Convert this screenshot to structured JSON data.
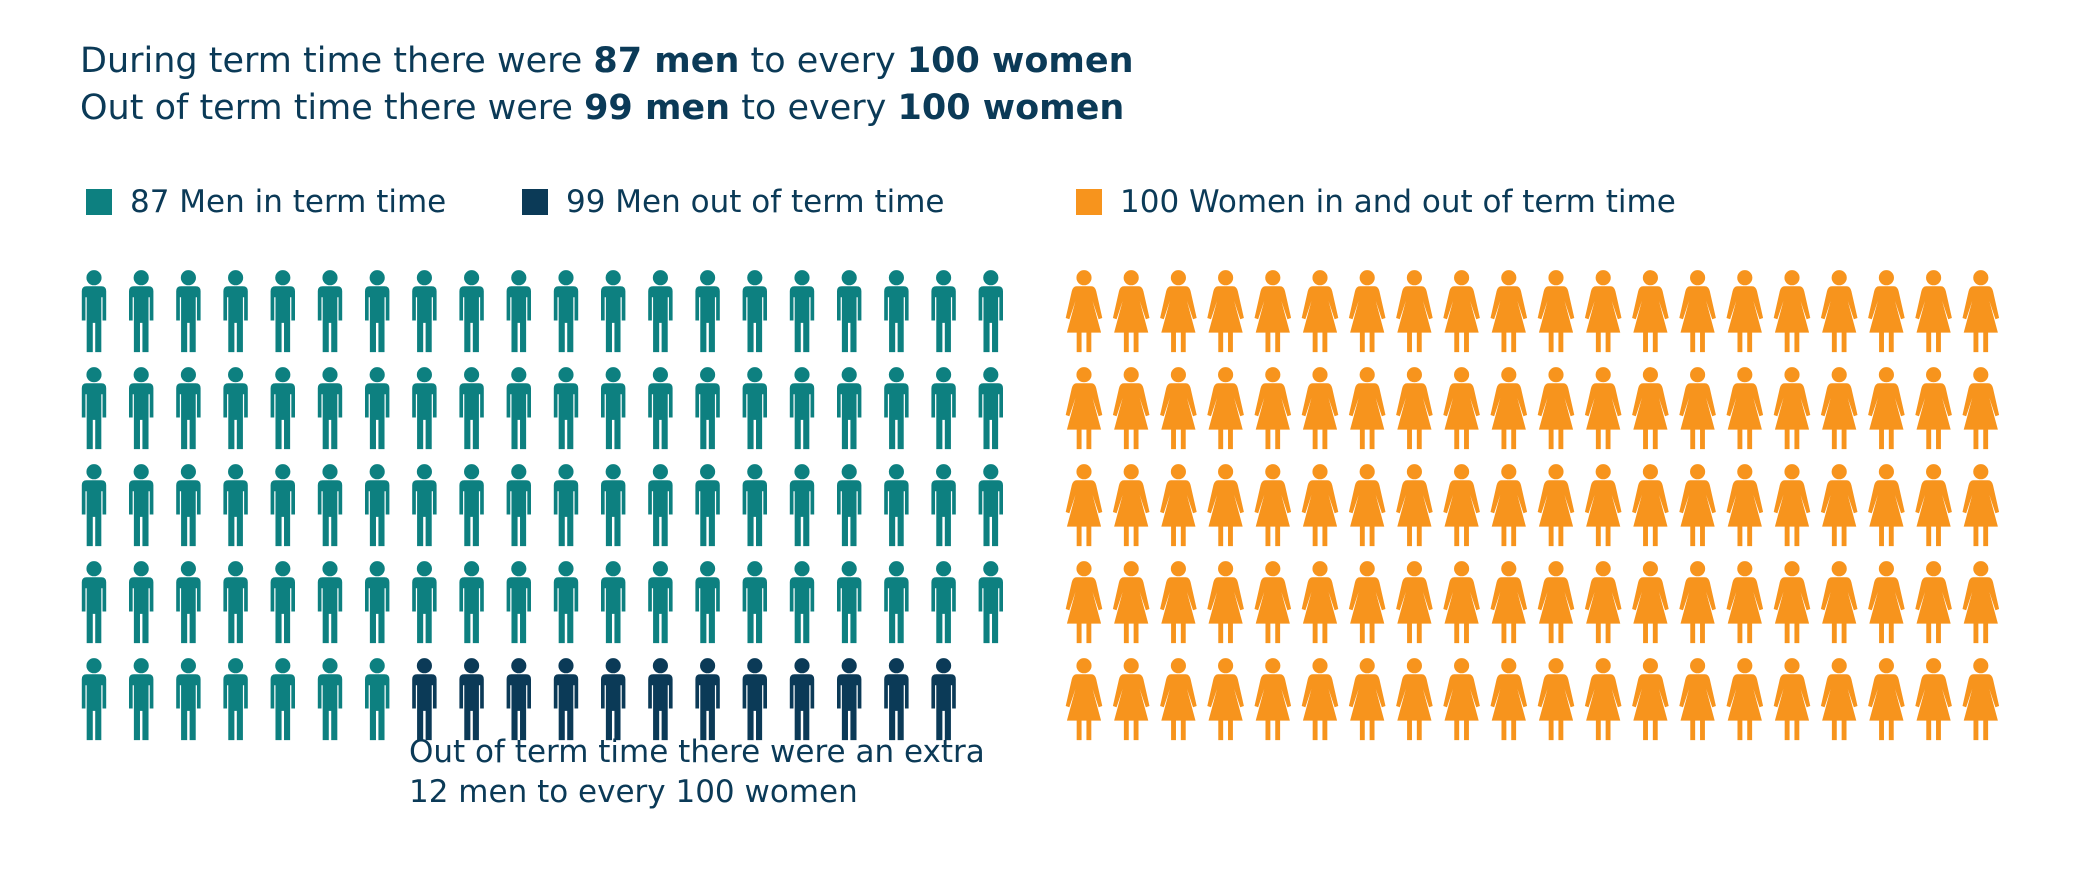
{
  "headline": {
    "line1": {
      "pre": "During term time there were ",
      "men": "87 men",
      "mid": " to every ",
      "women": "100 women"
    },
    "line2": {
      "pre": "Out of term time there were ",
      "men": "99 men",
      "mid": " to every ",
      "women": "100 women"
    }
  },
  "legend": [
    {
      "label": "87 Men in term time",
      "color": "#0d8080"
    },
    {
      "label": "99 Men out of term time",
      "color": "#0b3a57"
    },
    {
      "label": "100 Women in and out of term time",
      "color": "#f7941d"
    }
  ],
  "note": {
    "line1": "Out of term time there were an extra",
    "line2": "12 men to every 100 women"
  },
  "chart_data": {
    "type": "pictogram",
    "groups": [
      {
        "name": "87 Men in term time",
        "count": 87,
        "icon": "man-icon",
        "color": "#0d8080"
      },
      {
        "name": "99 Men out of term time",
        "count": 12,
        "icon": "man-icon",
        "color": "#0b3a57"
      },
      {
        "name": "100 Women in and out of term time",
        "count": 100,
        "icon": "woman-icon",
        "color": "#f7941d"
      }
    ]
  }
}
